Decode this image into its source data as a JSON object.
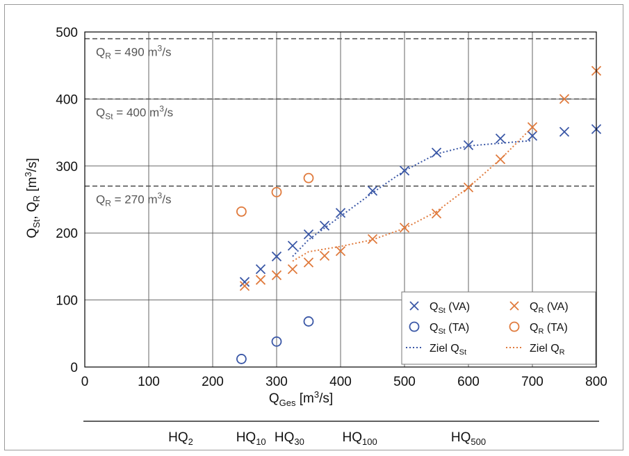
{
  "chart_data": {
    "type": "scatter",
    "xlabel": "Q",
    "xlabel_sub": "Ges",
    "xlabel_unit": " [m",
    "xlabel_unit_sup": "3",
    "xlabel_unit_end": "/s]",
    "ylabel_parts": {
      "a": "Q",
      "a_sub": "St",
      "b": ", Q",
      "b_sub": "R",
      "c": " [m",
      "c_sup": "3",
      "d": "/s]"
    },
    "xlim": [
      0,
      800
    ],
    "ylim": [
      0,
      500
    ],
    "xticks": [
      "0",
      "100",
      "200",
      "300",
      "400",
      "500",
      "600",
      "700",
      "800"
    ],
    "yticks": [
      "0",
      "100",
      "200",
      "300",
      "400",
      "500"
    ],
    "grid": true,
    "legend_position": "bottom-right",
    "colors": {
      "blue": "#3a57a6",
      "orange": "#e07a3c",
      "dashed": "#555555",
      "grid": "#555555"
    },
    "hlines": [
      {
        "y": 490,
        "label": "Q",
        "sub": "R",
        "text": " = 490 m",
        "sup": "3",
        "end": "/s"
      },
      {
        "y": 400,
        "label": "Q",
        "sub": "St",
        "text": " = 400 m",
        "sup": "3",
        "end": "/s"
      },
      {
        "y": 270,
        "label": "Q",
        "sub": "R",
        "text": " = 270 m",
        "sup": "3",
        "end": "/s"
      }
    ],
    "series": [
      {
        "name": "Q_St (VA)",
        "legend": {
          "main": "Q",
          "sub": "St",
          "rest": " (VA)"
        },
        "marker": "x",
        "color": "#3a57a6",
        "x": [
          250,
          275,
          300,
          325,
          350,
          375,
          400,
          450,
          500,
          550,
          600,
          650,
          700,
          750,
          800
        ],
        "y": [
          127,
          146,
          165,
          181,
          198,
          211,
          230,
          263,
          293,
          320,
          331,
          341,
          345,
          351,
          355
        ]
      },
      {
        "name": "Q_St (TA)",
        "legend": {
          "main": "Q",
          "sub": "St",
          "rest": " (TA)"
        },
        "marker": "o",
        "color": "#3a57a6",
        "x": [
          245,
          300,
          350
        ],
        "y": [
          12,
          38,
          68
        ]
      },
      {
        "name": "Ziel Q_St",
        "legend": {
          "main": "Ziel Q",
          "sub": "St",
          "rest": ""
        },
        "marker": "line",
        "color": "#3a57a6",
        "x": [
          325,
          350,
          400,
          450,
          500,
          550,
          600,
          650,
          700
        ],
        "y": [
          165,
          190,
          225,
          260,
          293,
          318,
          330,
          334,
          338
        ]
      },
      {
        "name": "Q_R (VA)",
        "legend": {
          "main": "Q",
          "sub": "R",
          "rest": " (VA)"
        },
        "marker": "x",
        "color": "#e07a3c",
        "x": [
          250,
          275,
          300,
          325,
          350,
          375,
          400,
          450,
          500,
          550,
          600,
          650,
          700,
          750,
          800
        ],
        "y": [
          121,
          130,
          137,
          146,
          156,
          166,
          173,
          191,
          208,
          229,
          268,
          310,
          358,
          400,
          442
        ]
      },
      {
        "name": "Q_R (TA)",
        "legend": {
          "main": "Q",
          "sub": "R",
          "rest": " (TA)"
        },
        "marker": "o",
        "color": "#e07a3c",
        "x": [
          245,
          300,
          350
        ],
        "y": [
          232,
          261,
          282
        ]
      },
      {
        "name": "Ziel Q_R",
        "legend": {
          "main": "Ziel Q",
          "sub": "R",
          "rest": ""
        },
        "marker": "line",
        "color": "#e07a3c",
        "x": [
          325,
          350,
          400,
          450,
          500,
          550,
          600,
          650,
          700
        ],
        "y": [
          158,
          172,
          180,
          190,
          207,
          232,
          268,
          310,
          358
        ]
      }
    ],
    "hq_scale": [
      {
        "x": 150,
        "label": "HQ",
        "sub": "2"
      },
      {
        "x": 260,
        "label": "HQ",
        "sub": "10"
      },
      {
        "x": 320,
        "label": "HQ",
        "sub": "30"
      },
      {
        "x": 430,
        "label": "HQ",
        "sub": "100"
      },
      {
        "x": 600,
        "label": "HQ",
        "sub": "500"
      }
    ]
  }
}
